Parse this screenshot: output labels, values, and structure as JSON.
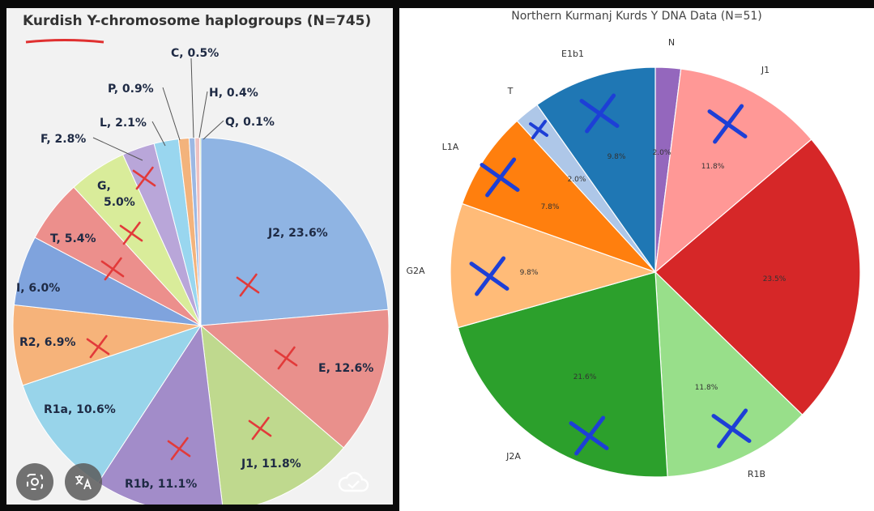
{
  "left": {
    "title": "Kurdish Y-chromosome haplogroups (N=745)",
    "overlay_icons": [
      "lens-icon",
      "translate-icon",
      "cloud-check-icon"
    ]
  },
  "right": {
    "title": "Northern Kurmanj Kurds Y DNA Data (N=51)"
  },
  "chart_data": [
    {
      "type": "pie",
      "title": "Kurdish Y-chromosome haplogroups (N=745)",
      "slices": [
        {
          "label": "J2",
          "value": 23.6,
          "color": "#8fb4e3",
          "text": "J2, 23.6%"
        },
        {
          "label": "E",
          "value": 12.6,
          "color": "#e9908c",
          "text": "E, 12.6%"
        },
        {
          "label": "J1",
          "value": 11.8,
          "color": "#bfd98e",
          "text": "J1, 11.8%"
        },
        {
          "label": "R1b",
          "value": 11.1,
          "color": "#a28cc9",
          "text": "R1b, 11.1%"
        },
        {
          "label": "R1a",
          "value": 10.6,
          "color": "#98d4ea",
          "text": "R1a, 10.6%"
        },
        {
          "label": "R2",
          "value": 6.9,
          "color": "#f6b37a",
          "text": "R2, 6.9%"
        },
        {
          "label": "I",
          "value": 6.0,
          "color": "#7fa3dd",
          "text": "I, 6.0%"
        },
        {
          "label": "T",
          "value": 5.4,
          "color": "#ec8f8c",
          "text": "T, 5.4%"
        },
        {
          "label": "G",
          "value": 5.0,
          "color": "#d9ec9a",
          "text": "G, 5.0%"
        },
        {
          "label": "F",
          "value": 2.8,
          "color": "#b9a6d9",
          "text": "F, 2.8%"
        },
        {
          "label": "L",
          "value": 2.1,
          "color": "#99d6ef",
          "text": "L, 2.1%"
        },
        {
          "label": "P",
          "value": 0.9,
          "color": "#f3b37c",
          "text": "P, 0.9%"
        },
        {
          "label": "C",
          "value": 0.5,
          "color": "#9cb8e3",
          "text": "C, 0.5%"
        },
        {
          "label": "H",
          "value": 0.4,
          "color": "#eec0bf",
          "text": "H, 0.4%"
        },
        {
          "label": "Q",
          "value": 0.1,
          "color": "#c9dc9c",
          "text": "Q, 0.1%"
        }
      ]
    },
    {
      "type": "pie",
      "title": "Northern Kurmanj Kurds Y DNA Data (N=51)",
      "slices": [
        {
          "label": "N",
          "value": 2.0,
          "color": "#9467bd",
          "text": "2.0%"
        },
        {
          "label": "J1",
          "value": 11.8,
          "color": "#ff9896",
          "text": "11.8%"
        },
        {
          "label": "",
          "value": 23.5,
          "color": "#d62728",
          "text": "23.5%"
        },
        {
          "label": "R1B",
          "value": 11.8,
          "color": "#98df8a",
          "text": "11.8%"
        },
        {
          "label": "J2A",
          "value": 21.6,
          "color": "#2ca02c",
          "text": "21.6%"
        },
        {
          "label": "G2A",
          "value": 9.8,
          "color": "#ffbb78",
          "text": "9.8%"
        },
        {
          "label": "L1A",
          "value": 7.8,
          "color": "#ff7f0e",
          "text": "7.8%"
        },
        {
          "label": "T",
          "value": 2.0,
          "color": "#aec7e8",
          "text": "2.0%"
        },
        {
          "label": "E1b1",
          "value": 9.8,
          "color": "#1f77b4",
          "text": "9.8%"
        }
      ]
    }
  ]
}
